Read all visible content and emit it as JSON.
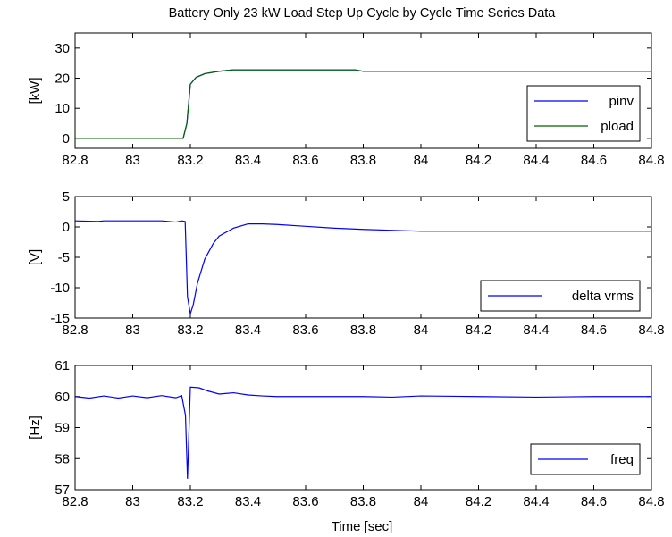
{
  "figure": {
    "title": "Battery Only 23 kW Load Step Up Cycle by Cycle Time Series Data",
    "xlabel": "Time [sec]"
  },
  "chart_data": [
    {
      "type": "line",
      "ylabel": "[kW]",
      "xlim": [
        82.8,
        84.8
      ],
      "ylim": [
        -3.3,
        35
      ],
      "xticks": [
        "82.8",
        "83",
        "83.2",
        "83.4",
        "83.6",
        "83.8",
        "84",
        "84.2",
        "84.4",
        "84.6",
        "84.8"
      ],
      "yticks": [
        "0",
        "10",
        "20",
        "30"
      ],
      "legend_position": "bottom-right",
      "series": [
        {
          "name": "pinv",
          "color": "#0000ff",
          "x": [
            82.8,
            83.175,
            83.188,
            83.2,
            83.22,
            83.25,
            83.3,
            83.35,
            83.4,
            83.5,
            83.6,
            83.7,
            83.77,
            83.8,
            84.0,
            84.2,
            84.4,
            84.6,
            84.8
          ],
          "y": [
            0,
            0,
            5,
            18,
            20.3,
            21.5,
            22.3,
            22.8,
            22.8,
            22.8,
            22.8,
            22.8,
            22.8,
            22.3,
            22.3,
            22.3,
            22.3,
            22.3,
            22.3
          ]
        },
        {
          "name": "pload",
          "color": "#006400",
          "x": [
            82.8,
            83.175,
            83.188,
            83.2,
            83.22,
            83.25,
            83.3,
            83.35,
            83.4,
            83.5,
            83.6,
            83.7,
            83.77,
            83.8,
            84.0,
            84.2,
            84.4,
            84.6,
            84.8
          ],
          "y": [
            0,
            0,
            5,
            18,
            20.3,
            21.5,
            22.3,
            22.8,
            22.8,
            22.8,
            22.8,
            22.8,
            22.8,
            22.3,
            22.3,
            22.3,
            22.3,
            22.3,
            22.3
          ]
        }
      ]
    },
    {
      "type": "line",
      "ylabel": "[V]",
      "xlim": [
        82.8,
        84.8
      ],
      "ylim": [
        -15,
        5
      ],
      "xticks": [
        "82.8",
        "83",
        "83.2",
        "83.4",
        "83.6",
        "83.8",
        "84",
        "84.2",
        "84.4",
        "84.6",
        "84.8"
      ],
      "yticks": [
        "5",
        "0",
        "-5",
        "-10",
        "-15"
      ],
      "legend_position": "bottom-right",
      "series": [
        {
          "name": "delta vrms",
          "color": "#0000ff",
          "x": [
            82.8,
            82.88,
            82.9,
            83.0,
            83.1,
            83.15,
            83.17,
            83.182,
            83.19,
            83.2,
            83.21,
            83.225,
            83.25,
            83.28,
            83.3,
            83.35,
            83.4,
            83.45,
            83.5,
            83.6,
            83.7,
            83.8,
            83.93,
            84.0,
            84.2,
            84.4,
            84.6,
            84.8
          ],
          "y": [
            1.0,
            0.9,
            1.0,
            1.0,
            1.0,
            0.8,
            1.0,
            0.9,
            -11.5,
            -14.3,
            -12.8,
            -9.2,
            -5.3,
            -2.7,
            -1.5,
            -0.2,
            0.5,
            0.5,
            0.4,
            0.1,
            -0.2,
            -0.4,
            -0.6,
            -0.7,
            -0.7,
            -0.7,
            -0.7,
            -0.7
          ]
        }
      ]
    },
    {
      "type": "line",
      "ylabel": "[Hz]",
      "xlim": [
        82.8,
        84.8
      ],
      "ylim": [
        57,
        61
      ],
      "xticks": [
        "82.8",
        "83",
        "83.2",
        "83.4",
        "83.6",
        "83.8",
        "84",
        "84.2",
        "84.4",
        "84.6",
        "84.8"
      ],
      "yticks": [
        "61",
        "60",
        "59",
        "58",
        "57"
      ],
      "legend_position": "bottom-right",
      "series": [
        {
          "name": "freq",
          "color": "#0000ff",
          "x": [
            82.8,
            82.85,
            82.9,
            82.95,
            83.0,
            83.05,
            83.1,
            83.15,
            83.17,
            83.183,
            83.19,
            83.2,
            83.23,
            83.26,
            83.3,
            83.35,
            83.4,
            83.45,
            83.5,
            83.6,
            83.7,
            83.8,
            83.9,
            84.0,
            84.2,
            84.4,
            84.6,
            84.8
          ],
          "y": [
            60.0,
            59.95,
            60.02,
            59.95,
            60.02,
            59.96,
            60.03,
            59.96,
            60.03,
            59.4,
            57.35,
            60.3,
            60.28,
            60.18,
            60.08,
            60.12,
            60.05,
            60.02,
            60.0,
            60.0,
            60.0,
            60.0,
            59.98,
            60.02,
            60.0,
            59.98,
            60.0,
            60.0
          ]
        }
      ]
    }
  ]
}
